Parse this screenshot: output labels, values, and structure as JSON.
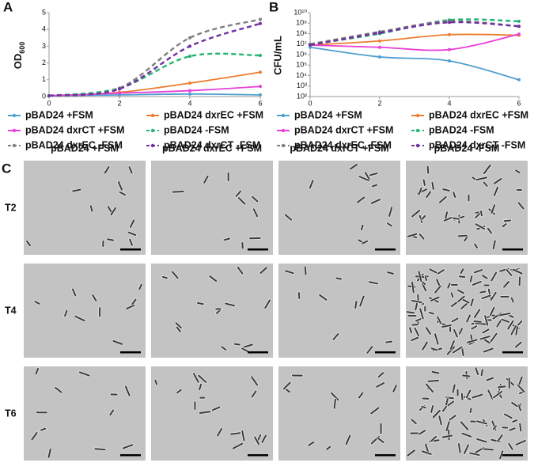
{
  "chart_data": [
    {
      "type": "line",
      "panel_label": "A",
      "y_label": [
        "OD",
        "600"
      ],
      "x": [
        0,
        2,
        4,
        6
      ],
      "xlim": [
        0,
        6
      ],
      "xticks": [
        0,
        2,
        4,
        6
      ],
      "ylim": [
        0,
        5
      ],
      "yticks": [
        0,
        1,
        2,
        3,
        4,
        5
      ],
      "log": false,
      "series": [
        {
          "name": "pBAD24 +FSM",
          "color": "#4f9fcf",
          "dashed": false,
          "values": [
            0.05,
            0.1,
            0.15,
            0.1
          ]
        },
        {
          "name": "pBAD24 dxrEC +FSM",
          "color": "#ed7d31",
          "dashed": false,
          "values": [
            0.05,
            0.25,
            0.8,
            1.45
          ]
        },
        {
          "name": "pBAD24 dxrCT +FSM",
          "color": "#e83fd6",
          "dashed": false,
          "values": [
            0.05,
            0.2,
            0.35,
            0.6
          ]
        },
        {
          "name": "pBAD24 -FSM",
          "color": "#22b573",
          "dashed": true,
          "values": [
            0.05,
            0.5,
            2.4,
            2.45
          ]
        },
        {
          "name": "pBAD24 dxrEC -FSM",
          "color": "#7f7f7f",
          "dashed": true,
          "values": [
            0.05,
            0.5,
            3.5,
            4.6
          ]
        },
        {
          "name": "pBAD24 dxrCT -FSM",
          "color": "#7030a0",
          "dashed": true,
          "values": [
            0.05,
            0.45,
            3.0,
            4.35
          ]
        }
      ]
    },
    {
      "type": "line",
      "panel_label": "B",
      "y_label": [
        "CFU/mL"
      ],
      "x": [
        0,
        2,
        4,
        6
      ],
      "xlim": [
        0,
        6
      ],
      "xticks": [
        0,
        2,
        4,
        6
      ],
      "ylim": [
        100,
        10000000000
      ],
      "log": true,
      "yticks": [
        {
          "value": 100,
          "label": "10²"
        },
        {
          "value": 1000,
          "label": "10³"
        },
        {
          "value": 10000,
          "label": "10⁴"
        },
        {
          "value": 100000,
          "label": "10⁵"
        },
        {
          "value": 1000000,
          "label": "10⁶"
        },
        {
          "value": 10000000,
          "label": "10⁷"
        },
        {
          "value": 100000000,
          "label": "10⁸"
        },
        {
          "value": 1000000000,
          "label": "10⁹"
        },
        {
          "value": 10000000000,
          "label": "10¹⁰"
        }
      ],
      "series": [
        {
          "name": "pBAD24 +FSM",
          "color": "#4f9fcf",
          "dashed": false,
          "values": [
            5000000,
            600000,
            250000,
            4000
          ]
        },
        {
          "name": "pBAD24 dxrEC +FSM",
          "color": "#ed7d31",
          "dashed": false,
          "values": [
            8000000,
            20000000,
            80000000,
            70000000
          ]
        },
        {
          "name": "pBAD24 dxrCT +FSM",
          "color": "#e83fd6",
          "dashed": false,
          "values": [
            8000000,
            5000000,
            3000000,
            90000000
          ]
        },
        {
          "name": "pBAD24 -FSM",
          "color": "#22b573",
          "dashed": true,
          "values": [
            9000000,
            100000000,
            2000000000,
            1500000000
          ]
        },
        {
          "name": "pBAD24 dxrEC -FSM",
          "color": "#7f7f7f",
          "dashed": true,
          "values": [
            10000000,
            150000000,
            1500000000,
            500000000
          ]
        },
        {
          "name": "pBAD24 dxrCT -FSM",
          "color": "#7030a0",
          "dashed": true,
          "values": [
            8000000,
            120000000,
            1200000000,
            500000000
          ]
        }
      ]
    }
  ],
  "micrographs": {
    "panel_label": "C",
    "columns": [
      "pBAD24 +FSM",
      "pBAD24 dxrEC +FSM",
      "pBAD24 dxrCT +FSM",
      "pBAD24 -FSM"
    ],
    "rows": [
      "T2",
      "T4",
      "T6"
    ]
  }
}
